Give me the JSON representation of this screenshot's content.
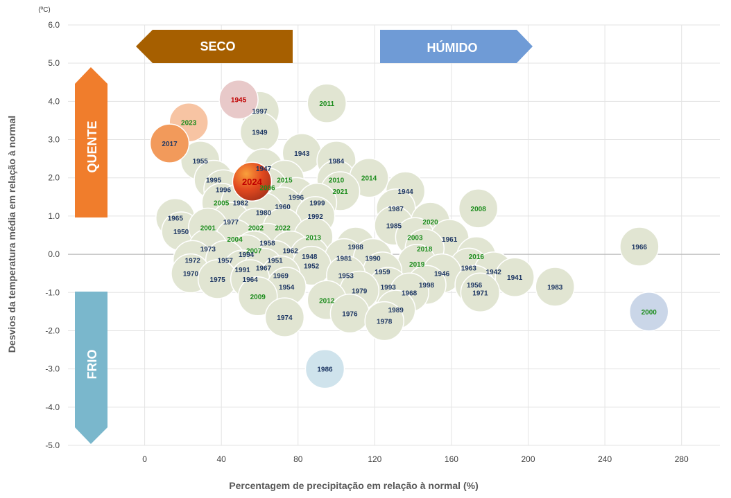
{
  "chart_data": {
    "type": "scatter",
    "xlabel": "Percentagem de precipitação em relação à normal (%)",
    "ylabel": "Desvios da temperatura média em relação à normal",
    "yunit": "(ºC)",
    "xlim": [
      -40,
      300
    ],
    "ylim": [
      -5.0,
      6.0
    ],
    "xticks": [
      "0",
      "40",
      "80",
      "120",
      "160",
      "200",
      "240",
      "280"
    ],
    "yticks": [
      "-5.0",
      "-4.0",
      "-3.0",
      "-2.0",
      "-1.0",
      "0.0",
      "1.0",
      "2.0",
      "3.0",
      "4.0",
      "5.0",
      "6.0"
    ],
    "grid": true,
    "zones": {
      "dry": "SECO",
      "wet": "HÚMIDO",
      "hot": "QUENTE",
      "cold": "FRIO"
    },
    "colors": {
      "dry_arrow": "#a65f00",
      "wet_arrow": "#6f9bd6",
      "hot_arrow": "#f07d2c",
      "cold_arrow": "#7ab7cc",
      "bubble": "#e1e5d2",
      "label_dark": "#1f3864",
      "label_green": "#1c8c1c",
      "label_red": "#c00000",
      "highlight_2024": "#e2491f",
      "year_2017": "#f29a5b",
      "year_2023": "#f7c4a3",
      "year_1945": "#e8c9c9",
      "year_1986": "#cfe3ec",
      "year_2000": "#cad6e8"
    },
    "points": [
      {
        "year": "1945",
        "x": 49,
        "y": 4.05,
        "label": "red",
        "fill": "year_1945"
      },
      {
        "year": "1997",
        "x": 60,
        "y": 3.75,
        "label": "dark"
      },
      {
        "year": "2011",
        "x": 95,
        "y": 3.95,
        "label": "green"
      },
      {
        "year": "2023",
        "x": 23,
        "y": 3.45,
        "label": "green",
        "fill": "year_2023"
      },
      {
        "year": "1949",
        "x": 60,
        "y": 3.2,
        "label": "dark"
      },
      {
        "year": "2017",
        "x": 13,
        "y": 2.9,
        "label": "dark",
        "fill": "year_2017"
      },
      {
        "year": "1943",
        "x": 82,
        "y": 2.65,
        "label": "dark"
      },
      {
        "year": "1955",
        "x": 29,
        "y": 2.45,
        "label": "dark"
      },
      {
        "year": "1984",
        "x": 100,
        "y": 2.45,
        "label": "dark"
      },
      {
        "year": "1947",
        "x": 62,
        "y": 2.25,
        "label": "dark"
      },
      {
        "year": "1995",
        "x": 36,
        "y": 1.95,
        "label": "dark"
      },
      {
        "year": "2015",
        "x": 73,
        "y": 1.95,
        "label": "green"
      },
      {
        "year": "2010",
        "x": 100,
        "y": 1.95,
        "label": "green"
      },
      {
        "year": "2014",
        "x": 117,
        "y": 2.0,
        "label": "green"
      },
      {
        "year": "2024",
        "x": 56,
        "y": 1.9,
        "label": "red",
        "fill": "highlight_2024"
      },
      {
        "year": "1996",
        "x": 41,
        "y": 1.7,
        "label": "dark"
      },
      {
        "year": "2006",
        "x": 64,
        "y": 1.75,
        "label": "green"
      },
      {
        "year": "1944",
        "x": 136,
        "y": 1.65,
        "label": "dark"
      },
      {
        "year": "2021",
        "x": 102,
        "y": 1.65,
        "label": "green"
      },
      {
        "year": "1996",
        "x": 79,
        "y": 1.5,
        "label": "dark"
      },
      {
        "year": "2005",
        "x": 40,
        "y": 1.35,
        "label": "green"
      },
      {
        "year": "1982",
        "x": 50,
        "y": 1.35,
        "label": "dark"
      },
      {
        "year": "1999",
        "x": 90,
        "y": 1.35,
        "label": "dark"
      },
      {
        "year": "1960",
        "x": 72,
        "y": 1.25,
        "label": "dark"
      },
      {
        "year": "1980",
        "x": 62,
        "y": 1.1,
        "label": "dark"
      },
      {
        "year": "2008",
        "x": 174,
        "y": 1.2,
        "label": "green"
      },
      {
        "year": "1987",
        "x": 131,
        "y": 1.2,
        "label": "dark"
      },
      {
        "year": "1992",
        "x": 89,
        "y": 1.0,
        "label": "dark"
      },
      {
        "year": "1965",
        "x": 16,
        "y": 0.95,
        "label": "dark"
      },
      {
        "year": "1977",
        "x": 45,
        "y": 0.85,
        "label": "dark"
      },
      {
        "year": "2020",
        "x": 149,
        "y": 0.85,
        "label": "green"
      },
      {
        "year": "1950",
        "x": 19,
        "y": 0.6,
        "label": "dark"
      },
      {
        "year": "2001",
        "x": 33,
        "y": 0.7,
        "label": "green"
      },
      {
        "year": "2002",
        "x": 58,
        "y": 0.7,
        "label": "green"
      },
      {
        "year": "2022",
        "x": 72,
        "y": 0.7,
        "label": "green"
      },
      {
        "year": "1985",
        "x": 130,
        "y": 0.75,
        "label": "dark"
      },
      {
        "year": "2013",
        "x": 88,
        "y": 0.45,
        "label": "green"
      },
      {
        "year": "2003",
        "x": 141,
        "y": 0.45,
        "label": "green"
      },
      {
        "year": "1961",
        "x": 159,
        "y": 0.4,
        "label": "dark"
      },
      {
        "year": "2004",
        "x": 47,
        "y": 0.4,
        "label": "green"
      },
      {
        "year": "1958",
        "x": 64,
        "y": 0.3,
        "label": "dark"
      },
      {
        "year": "1988",
        "x": 110,
        "y": 0.2,
        "label": "dark"
      },
      {
        "year": "1973",
        "x": 33,
        "y": 0.15,
        "label": "dark"
      },
      {
        "year": "2018",
        "x": 146,
        "y": 0.15,
        "label": "green"
      },
      {
        "year": "1962",
        "x": 76,
        "y": 0.1,
        "label": "dark"
      },
      {
        "year": "2007",
        "x": 57,
        "y": 0.1,
        "label": "green"
      },
      {
        "year": "1994",
        "x": 53,
        "y": 0.0,
        "label": "dark"
      },
      {
        "year": "1948",
        "x": 86,
        "y": -0.05,
        "label": "dark"
      },
      {
        "year": "1981",
        "x": 104,
        "y": -0.1,
        "label": "dark"
      },
      {
        "year": "1990",
        "x": 119,
        "y": -0.1,
        "label": "dark"
      },
      {
        "year": "2016",
        "x": 173,
        "y": -0.05,
        "label": "green"
      },
      {
        "year": "1972",
        "x": 25,
        "y": -0.15,
        "label": "dark"
      },
      {
        "year": "1957",
        "x": 42,
        "y": -0.15,
        "label": "dark"
      },
      {
        "year": "1951",
        "x": 68,
        "y": -0.15,
        "label": "dark"
      },
      {
        "year": "2019",
        "x": 142,
        "y": -0.25,
        "label": "green"
      },
      {
        "year": "1991",
        "x": 51,
        "y": -0.4,
        "label": "dark"
      },
      {
        "year": "1967",
        "x": 62,
        "y": -0.35,
        "label": "dark"
      },
      {
        "year": "1952",
        "x": 87,
        "y": -0.3,
        "label": "dark"
      },
      {
        "year": "1963",
        "x": 169,
        "y": -0.35,
        "label": "dark"
      },
      {
        "year": "1942",
        "x": 182,
        "y": -0.45,
        "label": "dark"
      },
      {
        "year": "1959",
        "x": 124,
        "y": -0.45,
        "label": "dark"
      },
      {
        "year": "1946",
        "x": 155,
        "y": -0.5,
        "label": "dark"
      },
      {
        "year": "1970",
        "x": 24,
        "y": -0.5,
        "label": "dark"
      },
      {
        "year": "1953",
        "x": 105,
        "y": -0.55,
        "label": "dark"
      },
      {
        "year": "1969",
        "x": 71,
        "y": -0.55,
        "label": "dark"
      },
      {
        "year": "1941",
        "x": 193,
        "y": -0.6,
        "label": "dark"
      },
      {
        "year": "1975",
        "x": 38,
        "y": -0.65,
        "label": "dark"
      },
      {
        "year": "1964",
        "x": 55,
        "y": -0.65,
        "label": "dark"
      },
      {
        "year": "1966",
        "x": 258,
        "y": 0.2,
        "label": "dark"
      },
      {
        "year": "1956",
        "x": 172,
        "y": -0.8,
        "label": "dark"
      },
      {
        "year": "1998",
        "x": 147,
        "y": -0.8,
        "label": "dark"
      },
      {
        "year": "1993",
        "x": 127,
        "y": -0.85,
        "label": "dark"
      },
      {
        "year": "1954",
        "x": 74,
        "y": -0.85,
        "label": "dark"
      },
      {
        "year": "1979",
        "x": 112,
        "y": -0.95,
        "label": "dark"
      },
      {
        "year": "1968",
        "x": 138,
        "y": -1.0,
        "label": "dark"
      },
      {
        "year": "1983",
        "x": 214,
        "y": -0.85,
        "label": "dark"
      },
      {
        "year": "1971",
        "x": 175,
        "y": -1.0,
        "label": "dark"
      },
      {
        "year": "2009",
        "x": 59,
        "y": -1.1,
        "label": "green"
      },
      {
        "year": "2012",
        "x": 95,
        "y": -1.2,
        "label": "green"
      },
      {
        "year": "1989",
        "x": 131,
        "y": -1.45,
        "label": "dark"
      },
      {
        "year": "2000",
        "x": 263,
        "y": -1.5,
        "label": "green",
        "fill": "year_2000"
      },
      {
        "year": "1976",
        "x": 107,
        "y": -1.55,
        "label": "dark"
      },
      {
        "year": "1974",
        "x": 73,
        "y": -1.65,
        "label": "dark"
      },
      {
        "year": "1978",
        "x": 125,
        "y": -1.75,
        "label": "dark"
      },
      {
        "year": "1986",
        "x": 94,
        "y": -3.0,
        "label": "dark",
        "fill": "year_1986"
      }
    ]
  }
}
